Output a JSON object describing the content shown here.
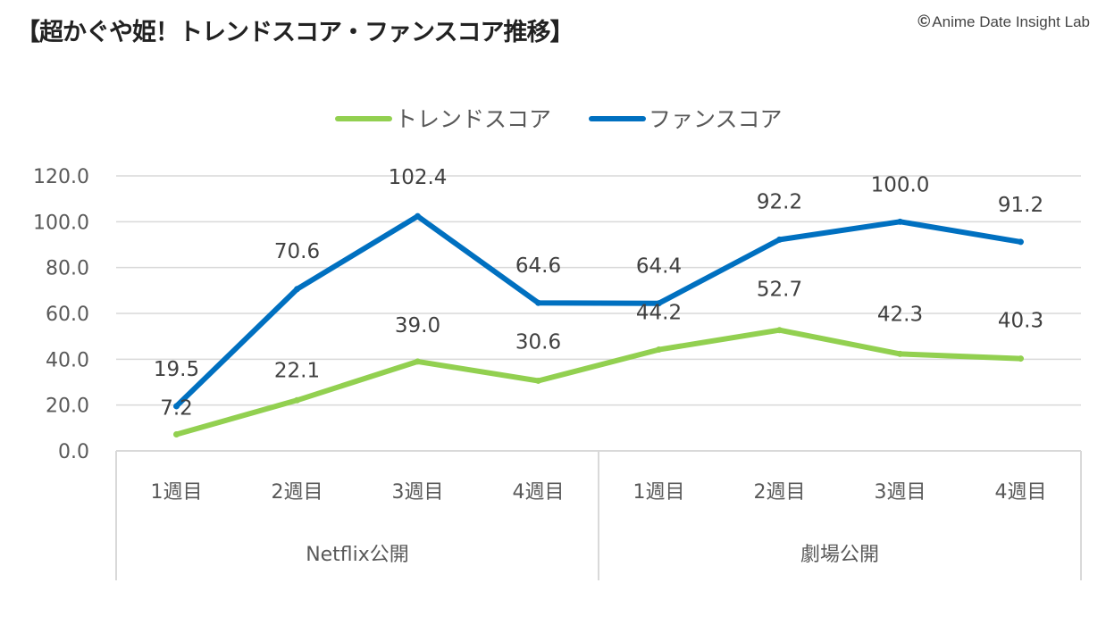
{
  "header": {
    "title": "【超かぐや姫！トレンドスコア・ファンスコア推移】",
    "credit_symbol": "©",
    "credit_text": "Anime Date Insight Lab"
  },
  "chart_data": {
    "type": "line",
    "title": "【超かぐや姫！トレンドスコア・ファンスコア推移】",
    "categories": [
      "1週目",
      "2週目",
      "3週目",
      "4週目",
      "1週目",
      "2週目",
      "3週目",
      "4週目"
    ],
    "groups": [
      {
        "label": "Netflix公開",
        "span": 4
      },
      {
        "label": "劇場公開",
        "span": 4
      }
    ],
    "series": [
      {
        "name": "トレンドスコア",
        "color": "#92D050",
        "values": [
          7.2,
          22.1,
          39.0,
          30.6,
          44.2,
          52.7,
          42.3,
          40.3
        ]
      },
      {
        "name": "ファンスコア",
        "color": "#0070C0",
        "values": [
          19.5,
          70.6,
          102.4,
          64.6,
          64.4,
          92.2,
          100.0,
          91.2
        ]
      }
    ],
    "ylim": [
      0,
      120
    ],
    "yticks": [
      "0.0",
      "20.0",
      "40.0",
      "60.0",
      "80.0",
      "100.0",
      "120.0"
    ],
    "value_format_decimals": 1,
    "legend_position": "top-center",
    "grid": true,
    "xlabel": "",
    "ylabel": ""
  }
}
